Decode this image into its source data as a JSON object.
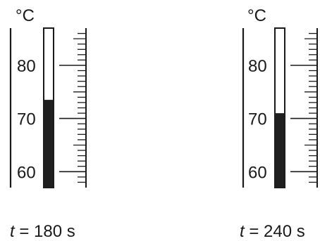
{
  "unit": "°C",
  "scale": {
    "min": 57,
    "max": 87,
    "labels": [
      60,
      70,
      80
    ],
    "minor_step": 1
  },
  "thermometers": [
    {
      "id": "t180",
      "reading": 73.5,
      "time_symbol": "t",
      "time_rest": " = 180 s"
    },
    {
      "id": "t240",
      "reading": 71,
      "time_symbol": "t",
      "time_rest": " = 240 s"
    }
  ],
  "colors": {
    "stroke": "#1a1a1a",
    "liquid": "#1f1f1f",
    "background": "#ffffff"
  }
}
